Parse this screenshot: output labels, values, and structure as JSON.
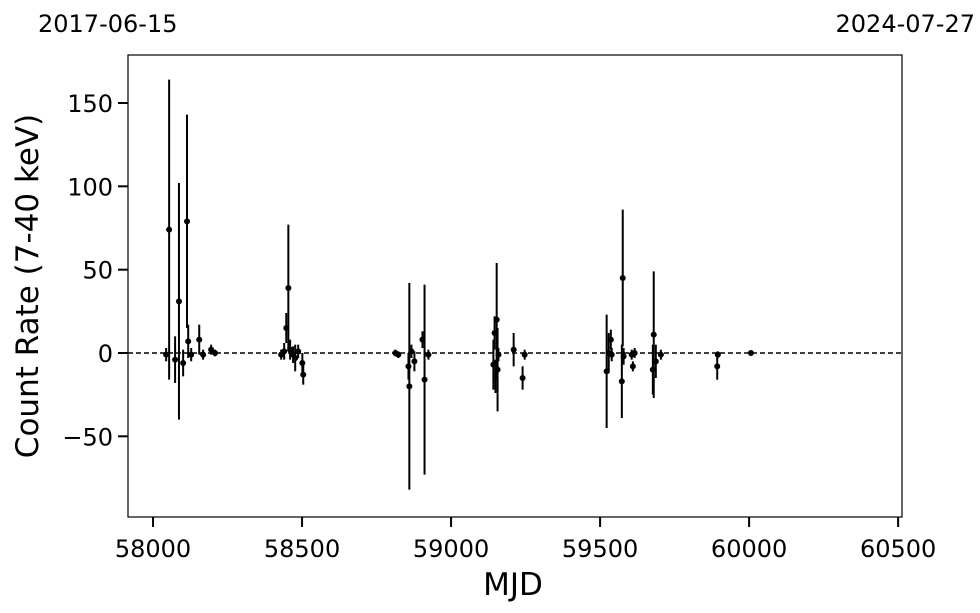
{
  "chart_data": {
    "type": "errorbar",
    "left_date": "2017-06-15",
    "right_date": "2024-07-27",
    "x_label": "MJD",
    "y_label": "Count Rate (7-40 keV)",
    "color": "#000000",
    "hline": 0,
    "x": [
      58044,
      58054,
      58074,
      58087,
      58101,
      58114,
      58118,
      58128,
      58155,
      58168,
      58195,
      58208,
      58430,
      58440,
      58447,
      58454,
      58460,
      58470,
      58477,
      58487,
      58501,
      58504,
      58813,
      58823,
      58857,
      58860,
      58867,
      58877,
      58904,
      58911,
      58924,
      59142,
      59146,
      59149,
      59153,
      59156,
      59159,
      59210,
      59240,
      59247,
      59522,
      59529,
      59536,
      59539,
      59573,
      59576,
      59579,
      59606,
      59610,
      59616,
      59677,
      59680,
      59687,
      59704,
      59893,
      59895,
      60006
    ],
    "values": [
      -1,
      74,
      -4,
      31,
      -6,
      79,
      7,
      -1,
      8,
      -1,
      2,
      0,
      -1,
      1,
      15,
      39,
      2,
      -1,
      -3,
      1,
      -6,
      -13,
      0,
      -1,
      -8,
      -20,
      1,
      -5,
      8,
      -16,
      -1,
      -7,
      12,
      -14,
      20,
      -10,
      -1,
      2,
      -15,
      -1,
      -11,
      0,
      8,
      -1,
      -17,
      45,
      -2,
      -1,
      -8,
      0,
      -10,
      11,
      -5,
      -1,
      -8,
      -1,
      0
    ],
    "errors": [
      4,
      90,
      14,
      71,
      8,
      64,
      10,
      4,
      9,
      3,
      3,
      2,
      3,
      5,
      9,
      38,
      6,
      5,
      8,
      4,
      6,
      6,
      2,
      2,
      8,
      62,
      4,
      6,
      5,
      57,
      3,
      15,
      10,
      10,
      34,
      25,
      4,
      10,
      7,
      3,
      34,
      12,
      6,
      4,
      22,
      41,
      5,
      3,
      3,
      3,
      15,
      38,
      10,
      3,
      8,
      2,
      1
    ],
    "xlim": [
      57916,
      60513
    ],
    "ylim": [
      -98.4,
      178.8
    ],
    "xticks": [
      58000,
      58500,
      59000,
      59500,
      60000,
      60500
    ],
    "yticks": [
      {
        "value": -50,
        "label": "−50"
      },
      0,
      50,
      100,
      150
    ]
  }
}
